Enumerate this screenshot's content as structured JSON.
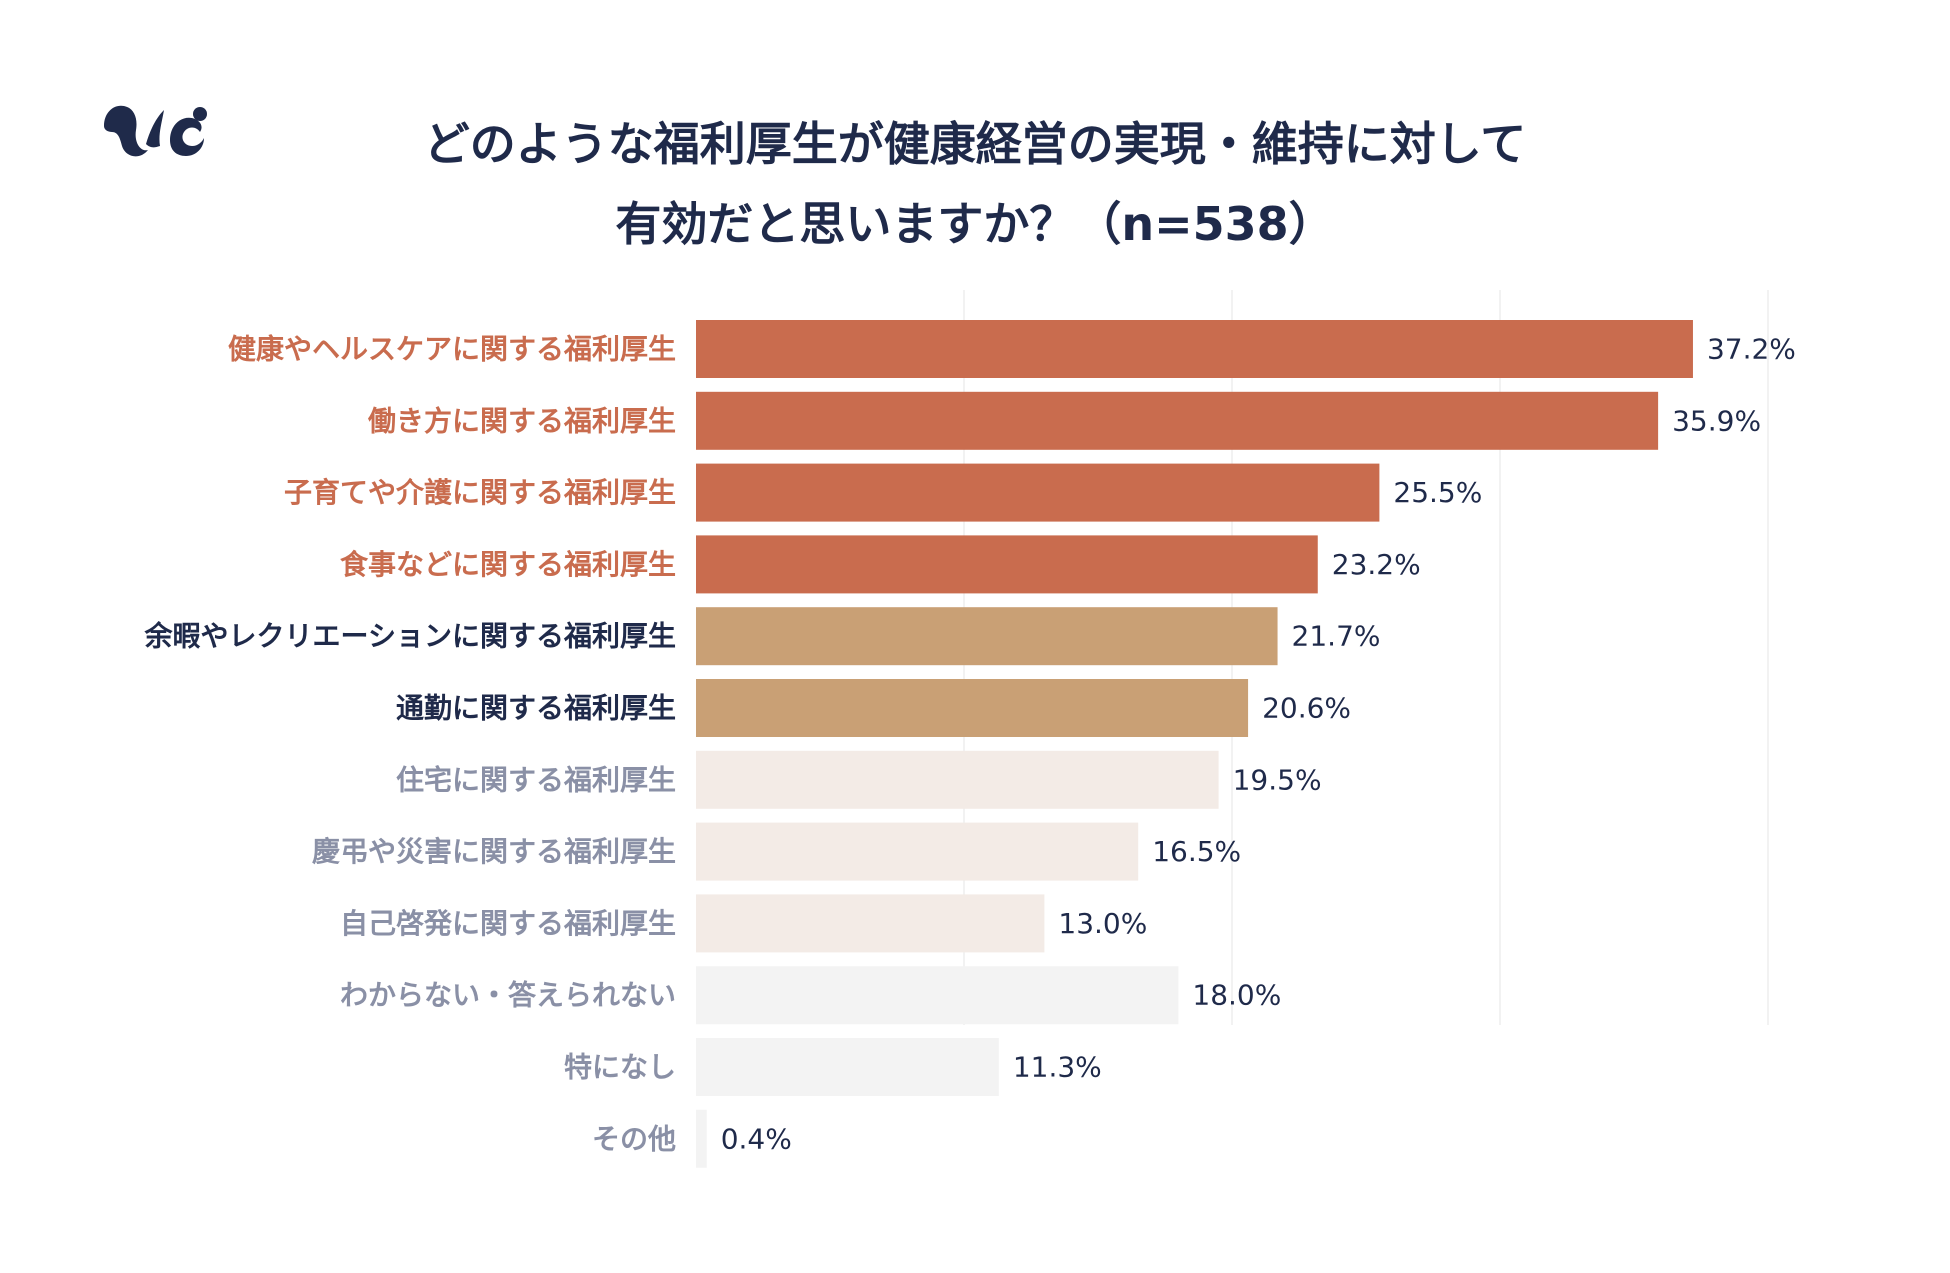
{
  "logo": {
    "icon": "brand-logo-icon",
    "color": "#1f2a4a"
  },
  "title": {
    "line1": "どのような福利厚生が健康経営の実現・維持に対して",
    "line2": "有効だと思いますか？（n=538）"
  },
  "chart_data": {
    "type": "bar",
    "orientation": "horizontal",
    "title": "どのような福利厚生が健康経営の実現・維持に対して有効だと思いますか？（n=538）",
    "xlabel": "",
    "ylabel": "",
    "xlim": [
      0,
      40
    ],
    "grid": true,
    "grid_values": [
      10,
      20,
      30,
      40
    ],
    "value_suffix": "%",
    "categories": [
      "健康やヘルスケアに関する福利厚生",
      "働き方に関する福利厚生",
      "子育てや介護に関する福利厚生",
      "食事などに関する福利厚生",
      "余暇やレクリエーションに関する福利厚生",
      "通勤に関する福利厚生",
      "住宅に関する福利厚生",
      "慶弔や災害に関する福利厚生",
      "自己啓発に関する福利厚生",
      "わからない・答えられない",
      "特になし",
      "その他"
    ],
    "values": [
      37.2,
      35.9,
      25.5,
      23.2,
      21.7,
      20.6,
      19.5,
      16.5,
      13.0,
      18.0,
      11.3,
      0.4
    ],
    "value_labels": [
      "37.2%",
      "35.9%",
      "25.5%",
      "23.2%",
      "21.7%",
      "20.6%",
      "19.5%",
      "16.5%",
      "13.0%",
      "18.0%",
      "11.3%",
      "0.4%"
    ],
    "bar_colors": [
      "#c96c4e",
      "#c96c4e",
      "#c96c4e",
      "#c96c4e",
      "#c9a075",
      "#c9a075",
      "#f3ebe6",
      "#f3ebe6",
      "#f3ebe6",
      "#f3f3f3",
      "#f3f3f3",
      "#f3f3f3"
    ],
    "label_colors": [
      "#c96c4e",
      "#c96c4e",
      "#c96c4e",
      "#c96c4e",
      "#1f2a4a",
      "#1f2a4a",
      "#8a90a6",
      "#8a90a6",
      "#8a90a6",
      "#8a90a6",
      "#8a90a6",
      "#8a90a6"
    ],
    "value_label_color": "#1f2a4a",
    "grid_color": "#eeeeee"
  }
}
